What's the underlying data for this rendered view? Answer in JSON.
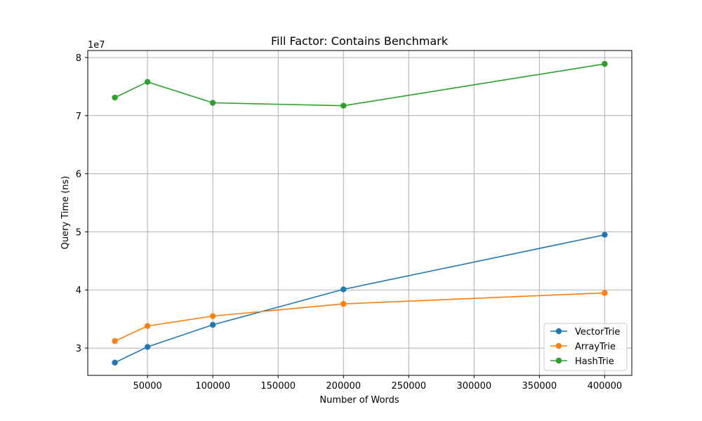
{
  "chart_data": {
    "type": "line",
    "title": "Fill Factor: Contains Benchmark",
    "xlabel": "Number of Words",
    "ylabel": "Query Time (ns)",
    "y_offset_label": "1e7",
    "y_scale": 10000000,
    "x": [
      25000,
      50000,
      100000,
      200000,
      400000
    ],
    "xlim": [
      4250,
      420750
    ],
    "ylim": [
      25300000,
      81200000
    ],
    "xticks": [
      50000,
      100000,
      150000,
      200000,
      250000,
      300000,
      350000,
      400000
    ],
    "xtick_labels": [
      "50000",
      "100000",
      "150000",
      "200000",
      "250000",
      "300000",
      "350000",
      "400000"
    ],
    "yticks": [
      30000000,
      40000000,
      50000000,
      60000000,
      70000000,
      80000000
    ],
    "ytick_labels": [
      "3",
      "4",
      "5",
      "6",
      "7",
      "8"
    ],
    "grid": true,
    "legend_position": "lower right",
    "series": [
      {
        "name": "VectorTrie",
        "color": "#1f77b4",
        "values": [
          27500000,
          30200000,
          34000000,
          40100000,
          49500000
        ]
      },
      {
        "name": "ArrayTrie",
        "color": "#ff7f0e",
        "values": [
          31200000,
          33800000,
          35500000,
          37600000,
          39500000
        ]
      },
      {
        "name": "HashTrie",
        "color": "#2ca02c",
        "values": [
          73100000,
          75800000,
          72200000,
          71700000,
          78900000
        ]
      }
    ]
  }
}
